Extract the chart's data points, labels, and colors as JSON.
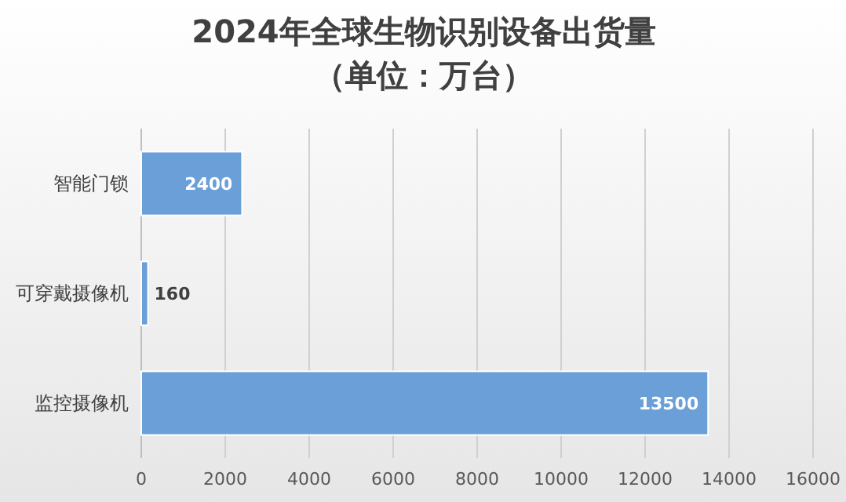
{
  "chart_data": {
    "type": "bar",
    "orientation": "horizontal",
    "title": "2024年全球生物识别设备出货量（单位：万台）",
    "categories": [
      "智能门锁",
      "可穿戴摄像机",
      "监控摄像机"
    ],
    "values": [
      2400,
      160,
      13500
    ],
    "color": "#6a9fd8",
    "xlim": [
      0,
      16000
    ],
    "xticks": [
      0,
      2000,
      4000,
      6000,
      8000,
      10000,
      12000,
      14000,
      16000
    ],
    "grid": "x",
    "data_labels": true
  }
}
